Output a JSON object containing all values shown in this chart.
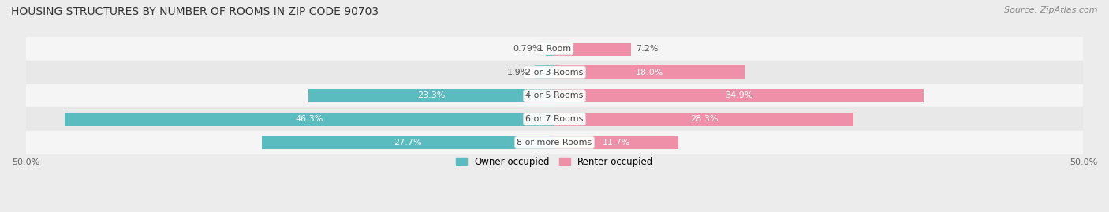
{
  "title": "HOUSING STRUCTURES BY NUMBER OF ROOMS IN ZIP CODE 90703",
  "source": "Source: ZipAtlas.com",
  "categories": [
    "1 Room",
    "2 or 3 Rooms",
    "4 or 5 Rooms",
    "6 or 7 Rooms",
    "8 or more Rooms"
  ],
  "owner_pct": [
    0.79,
    1.9,
    23.3,
    46.3,
    27.7
  ],
  "renter_pct": [
    7.2,
    18.0,
    34.9,
    28.3,
    11.7
  ],
  "owner_color": "#5bbcbf",
  "renter_color": "#f08fa8",
  "owner_label": "Owner-occupied",
  "renter_label": "Renter-occupied",
  "axis_limit": 50.0,
  "bar_height": 0.58,
  "bg_color": "#ececec",
  "row_colors": [
    "#f5f5f5",
    "#e8e8e8"
  ],
  "title_fontsize": 10,
  "label_fontsize": 8,
  "tick_fontsize": 8,
  "source_fontsize": 8
}
